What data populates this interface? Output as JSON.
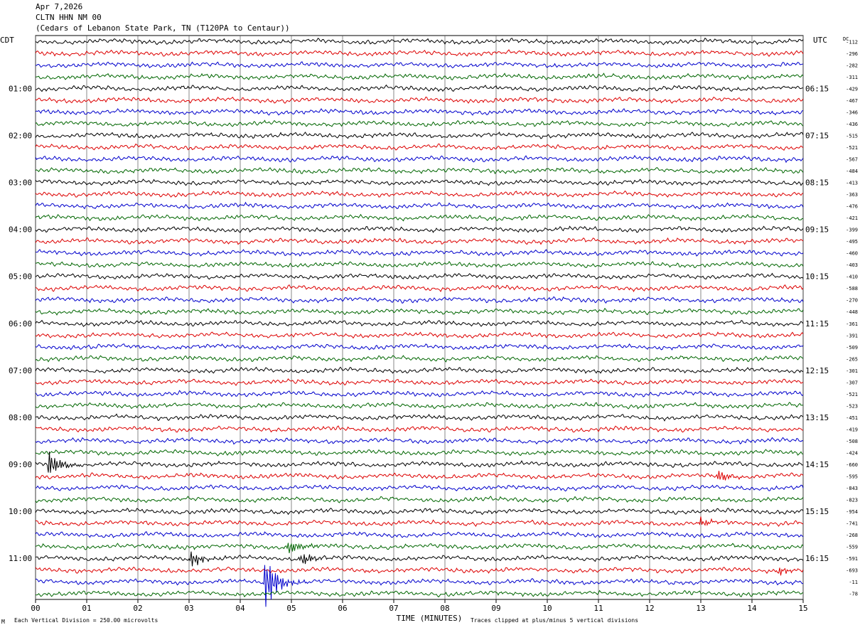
{
  "header": {
    "date": "Apr 7,2026",
    "station": "CLTN HHN NM 00",
    "location": "(Cedars of Lebanon State Park, TN (T120PA to Centaur))"
  },
  "left_zone_label": "CDT",
  "right_zone_label": "UTC",
  "dc_label": "DC",
  "footer": {
    "scale": "Each Vertical Division =  250.00 microvolts",
    "clip": "Traces clipped at plus/minus 5 vertical divisions",
    "corner_mark": "M"
  },
  "colors": {
    "cycle": [
      "#000000",
      "#dd0000",
      "#0000cc",
      "#006600"
    ],
    "grid": "#000000"
  },
  "chart_data": {
    "type": "line",
    "subtype": "helicorder",
    "xlabel": "TIME (MINUTES)",
    "x_ticks": [
      "00",
      "01",
      "02",
      "03",
      "04",
      "05",
      "06",
      "07",
      "08",
      "09",
      "10",
      "11",
      "12",
      "13",
      "14",
      "15"
    ],
    "xlim": [
      0,
      15
    ],
    "left_hour_labels": [
      "01:00",
      "02:00",
      "03:00",
      "04:00",
      "05:00",
      "06:00",
      "07:00",
      "08:00",
      "09:00",
      "10:00",
      "11:00"
    ],
    "right_hour_labels": [
      "06:15",
      "07:15",
      "08:15",
      "09:15",
      "10:15",
      "11:15",
      "12:15",
      "13:15",
      "14:15",
      "15:15",
      "16:15"
    ],
    "dc_offsets": [
      -112,
      -296,
      -282,
      -311,
      -429,
      -467,
      -346,
      -436,
      -515,
      -521,
      -567,
      -484,
      -413,
      -363,
      -476,
      -421,
      -399,
      -495,
      -460,
      -403,
      -410,
      -588,
      -270,
      -448,
      -361,
      -391,
      -509,
      -265,
      -301,
      -307,
      -521,
      -523,
      -451,
      -419,
      -508,
      -424,
      -660,
      -595,
      -843,
      -823,
      -954,
      -741,
      -268,
      -559,
      -591,
      -693,
      -11,
      -78
    ],
    "events": [
      {
        "trace": 36,
        "minute": 0.25,
        "amplitude_div": 2.5
      },
      {
        "trace": 37,
        "minute": 13.35,
        "amplitude_div": 1.0
      },
      {
        "trace": 41,
        "minute": 13.0,
        "amplitude_div": 0.8
      },
      {
        "trace": 44,
        "minute": 3.05,
        "amplitude_div": 1.4
      },
      {
        "trace": 44,
        "minute": 5.2,
        "amplitude_div": 1.2
      },
      {
        "trace": 43,
        "minute": 4.95,
        "amplitude_div": 1.4
      },
      {
        "trace": 45,
        "minute": 14.5,
        "amplitude_div": 0.8
      },
      {
        "trace": 46,
        "minute": 4.5,
        "amplitude_div": 5.0
      }
    ]
  }
}
